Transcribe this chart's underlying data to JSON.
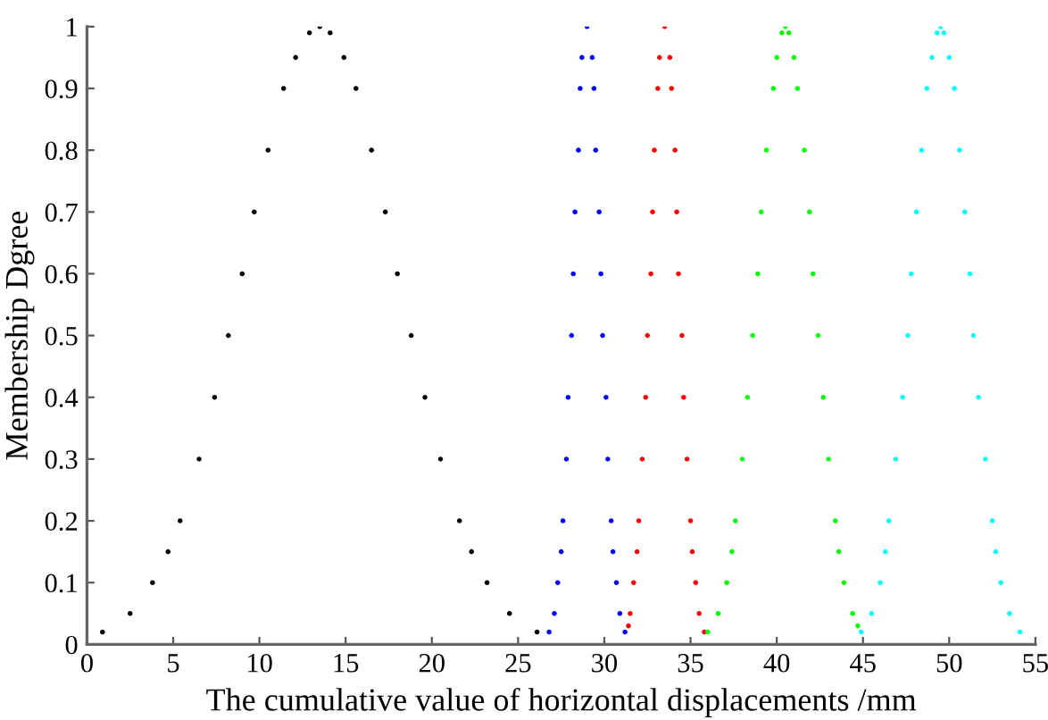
{
  "chart_data": {
    "type": "scatter",
    "xlabel": "The cumulative value of horizontal displacements /mm",
    "ylabel": "Membership Dgree",
    "xlim": [
      0,
      55
    ],
    "xticks": [
      0,
      5,
      10,
      15,
      20,
      25,
      30,
      35,
      40,
      45,
      50,
      55
    ],
    "ylim": [
      0,
      1
    ],
    "yticks": [
      0,
      0.1,
      0.2,
      0.3,
      0.4,
      0.5,
      0.6,
      0.7,
      0.8,
      0.9,
      1
    ],
    "grid": false,
    "marker": "circle",
    "series": [
      {
        "color": "#000000",
        "x": [
          0.9,
          2.5,
          3.8,
          4.7,
          5.4,
          6.5,
          7.4,
          8.2,
          9.0,
          9.7,
          10.5,
          11.4,
          12.1,
          12.9,
          13.5,
          26.1,
          24.5,
          23.2,
          22.3,
          21.6,
          20.5,
          19.6,
          18.8,
          18.0,
          17.3,
          16.5,
          15.6,
          14.9,
          14.1
        ],
        "values": [
          0.02,
          0.05,
          0.1,
          0.15,
          0.2,
          0.3,
          0.4,
          0.5,
          0.6,
          0.7,
          0.8,
          0.9,
          0.95,
          0.99,
          1,
          0.02,
          0.05,
          0.1,
          0.15,
          0.2,
          0.3,
          0.4,
          0.5,
          0.6,
          0.7,
          0.8,
          0.9,
          0.95,
          0.99
        ]
      },
      {
        "color": "#0000ff",
        "x": [
          26.8,
          27.1,
          27.3,
          27.5,
          27.6,
          27.8,
          27.9,
          28.1,
          28.2,
          28.3,
          28.5,
          28.6,
          28.7,
          29.0,
          31.2,
          30.9,
          30.7,
          30.5,
          30.4,
          30.2,
          30.1,
          29.9,
          29.8,
          29.7,
          29.5,
          29.4,
          29.3
        ],
        "values": [
          0.02,
          0.05,
          0.1,
          0.15,
          0.2,
          0.3,
          0.4,
          0.5,
          0.6,
          0.7,
          0.8,
          0.9,
          0.95,
          1,
          0.02,
          0.05,
          0.1,
          0.15,
          0.2,
          0.3,
          0.4,
          0.5,
          0.6,
          0.7,
          0.8,
          0.9,
          0.95
        ]
      },
      {
        "color": "#ff0000",
        "x": [
          31.4,
          31.5,
          31.7,
          31.9,
          32.0,
          32.2,
          32.4,
          32.5,
          32.7,
          32.8,
          32.9,
          33.1,
          33.2,
          33.5,
          35.8,
          35.5,
          35.3,
          35.1,
          35.0,
          34.8,
          34.6,
          34.5,
          34.3,
          34.2,
          34.1,
          33.9,
          33.8
        ],
        "values": [
          0.03,
          0.05,
          0.1,
          0.15,
          0.2,
          0.3,
          0.4,
          0.5,
          0.6,
          0.7,
          0.8,
          0.9,
          0.95,
          1,
          0.02,
          0.05,
          0.1,
          0.15,
          0.2,
          0.3,
          0.4,
          0.5,
          0.6,
          0.7,
          0.8,
          0.9,
          0.95
        ]
      },
      {
        "color": "#00ff00",
        "x": [
          36.0,
          36.6,
          37.1,
          37.4,
          37.6,
          38.0,
          38.3,
          38.6,
          38.9,
          39.1,
          39.4,
          39.8,
          40.0,
          40.3,
          40.5,
          44.7,
          44.4,
          43.9,
          43.6,
          43.4,
          43.0,
          42.7,
          42.4,
          42.1,
          41.9,
          41.6,
          41.2,
          41.0,
          40.7
        ],
        "values": [
          0.02,
          0.05,
          0.1,
          0.15,
          0.2,
          0.3,
          0.4,
          0.5,
          0.6,
          0.7,
          0.8,
          0.9,
          0.95,
          0.99,
          1,
          0.03,
          0.05,
          0.1,
          0.15,
          0.2,
          0.3,
          0.4,
          0.5,
          0.6,
          0.7,
          0.8,
          0.9,
          0.95,
          0.99
        ]
      },
      {
        "color": "#00ffff",
        "x": [
          44.9,
          45.5,
          46.0,
          46.3,
          46.5,
          46.9,
          47.3,
          47.6,
          47.8,
          48.1,
          48.4,
          48.7,
          49.0,
          49.3,
          49.5,
          54.1,
          53.5,
          53.0,
          52.7,
          52.5,
          52.1,
          51.7,
          51.4,
          51.2,
          50.9,
          50.6,
          50.3,
          50.0,
          49.7
        ],
        "values": [
          0.02,
          0.05,
          0.1,
          0.15,
          0.2,
          0.3,
          0.4,
          0.5,
          0.6,
          0.7,
          0.8,
          0.9,
          0.95,
          0.99,
          1,
          0.02,
          0.05,
          0.1,
          0.15,
          0.2,
          0.3,
          0.4,
          0.5,
          0.6,
          0.7,
          0.8,
          0.9,
          0.95,
          0.99
        ]
      }
    ]
  }
}
